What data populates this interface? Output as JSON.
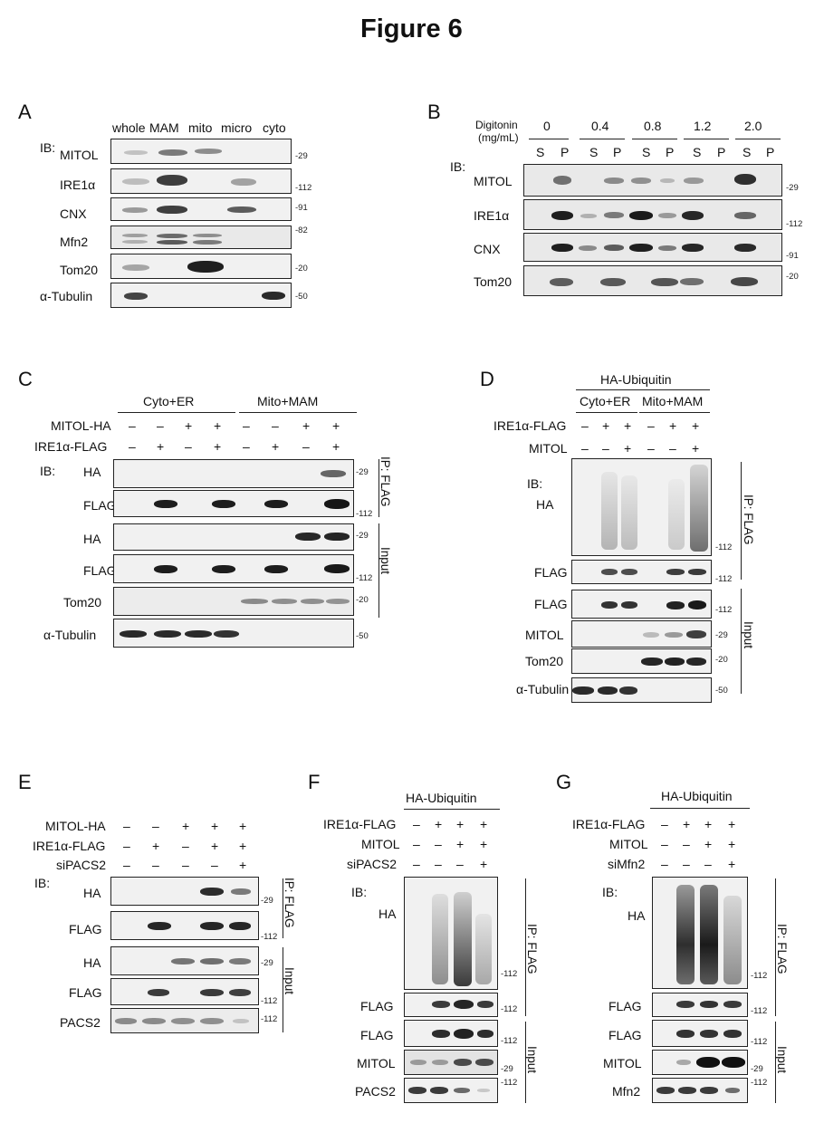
{
  "figure_title": "Figure 6",
  "common": {
    "ib": "IB:",
    "ib_ha": "HA",
    "ip_flag": "IP: FLAG",
    "input": "Input",
    "plus": "+",
    "minus": "–",
    "mw29": "-29",
    "mw112": "-112",
    "mw91": "-91",
    "mw82": "-82",
    "mw20": "-20",
    "mw50": "-50",
    "ha_ubiquitin": "HA-Ubiquitin"
  },
  "panel_a": {
    "label": "A",
    "lanes": [
      "whole",
      "MAM",
      "mito",
      "micro",
      "cyto"
    ],
    "blots": [
      "MITOL",
      "IRE1α",
      "CNX",
      "Mfn2",
      "Tom20",
      "α-Tubulin"
    ]
  },
  "panel_b": {
    "label": "B",
    "digitonin": "Digitonin",
    "unit": "(mg/mL)",
    "concentrations": [
      "0",
      "0.4",
      "0.8",
      "1.2",
      "2.0"
    ],
    "s": "S",
    "p": "P",
    "blots": [
      "MITOL",
      "IRE1α",
      "CNX",
      "Tom20"
    ]
  },
  "panel_c": {
    "label": "C",
    "groups": [
      "Cyto+ER",
      "Mito+MAM"
    ],
    "rows": [
      "MITOL-HA",
      "IRE1α-FLAG"
    ],
    "blots": [
      "HA",
      "FLAG",
      "HA",
      "FLAG",
      "Tom20",
      "α-Tubulin"
    ]
  },
  "panel_d": {
    "label": "D",
    "groups": [
      "Cyto+ER",
      "Mito+MAM"
    ],
    "rows": [
      "IRE1α-FLAG",
      "MITOL"
    ],
    "blots": [
      "FLAG",
      "FLAG",
      "MITOL",
      "Tom20",
      "α-Tubulin"
    ]
  },
  "panel_e": {
    "label": "E",
    "rows": [
      "MITOL-HA",
      "IRE1α-FLAG",
      "siPACS2"
    ],
    "blots": [
      "HA",
      "FLAG",
      "HA",
      "FLAG",
      "PACS2"
    ]
  },
  "panel_f": {
    "label": "F",
    "rows": [
      "IRE1α-FLAG",
      "MITOL",
      "siPACS2"
    ],
    "blots": [
      "FLAG",
      "FLAG",
      "MITOL",
      "PACS2"
    ]
  },
  "panel_g": {
    "label": "G",
    "rows": [
      "IRE1α-FLAG",
      "MITOL",
      "siMfn2"
    ],
    "blots": [
      "FLAG",
      "FLAG",
      "MITOL",
      "Mfn2"
    ]
  }
}
